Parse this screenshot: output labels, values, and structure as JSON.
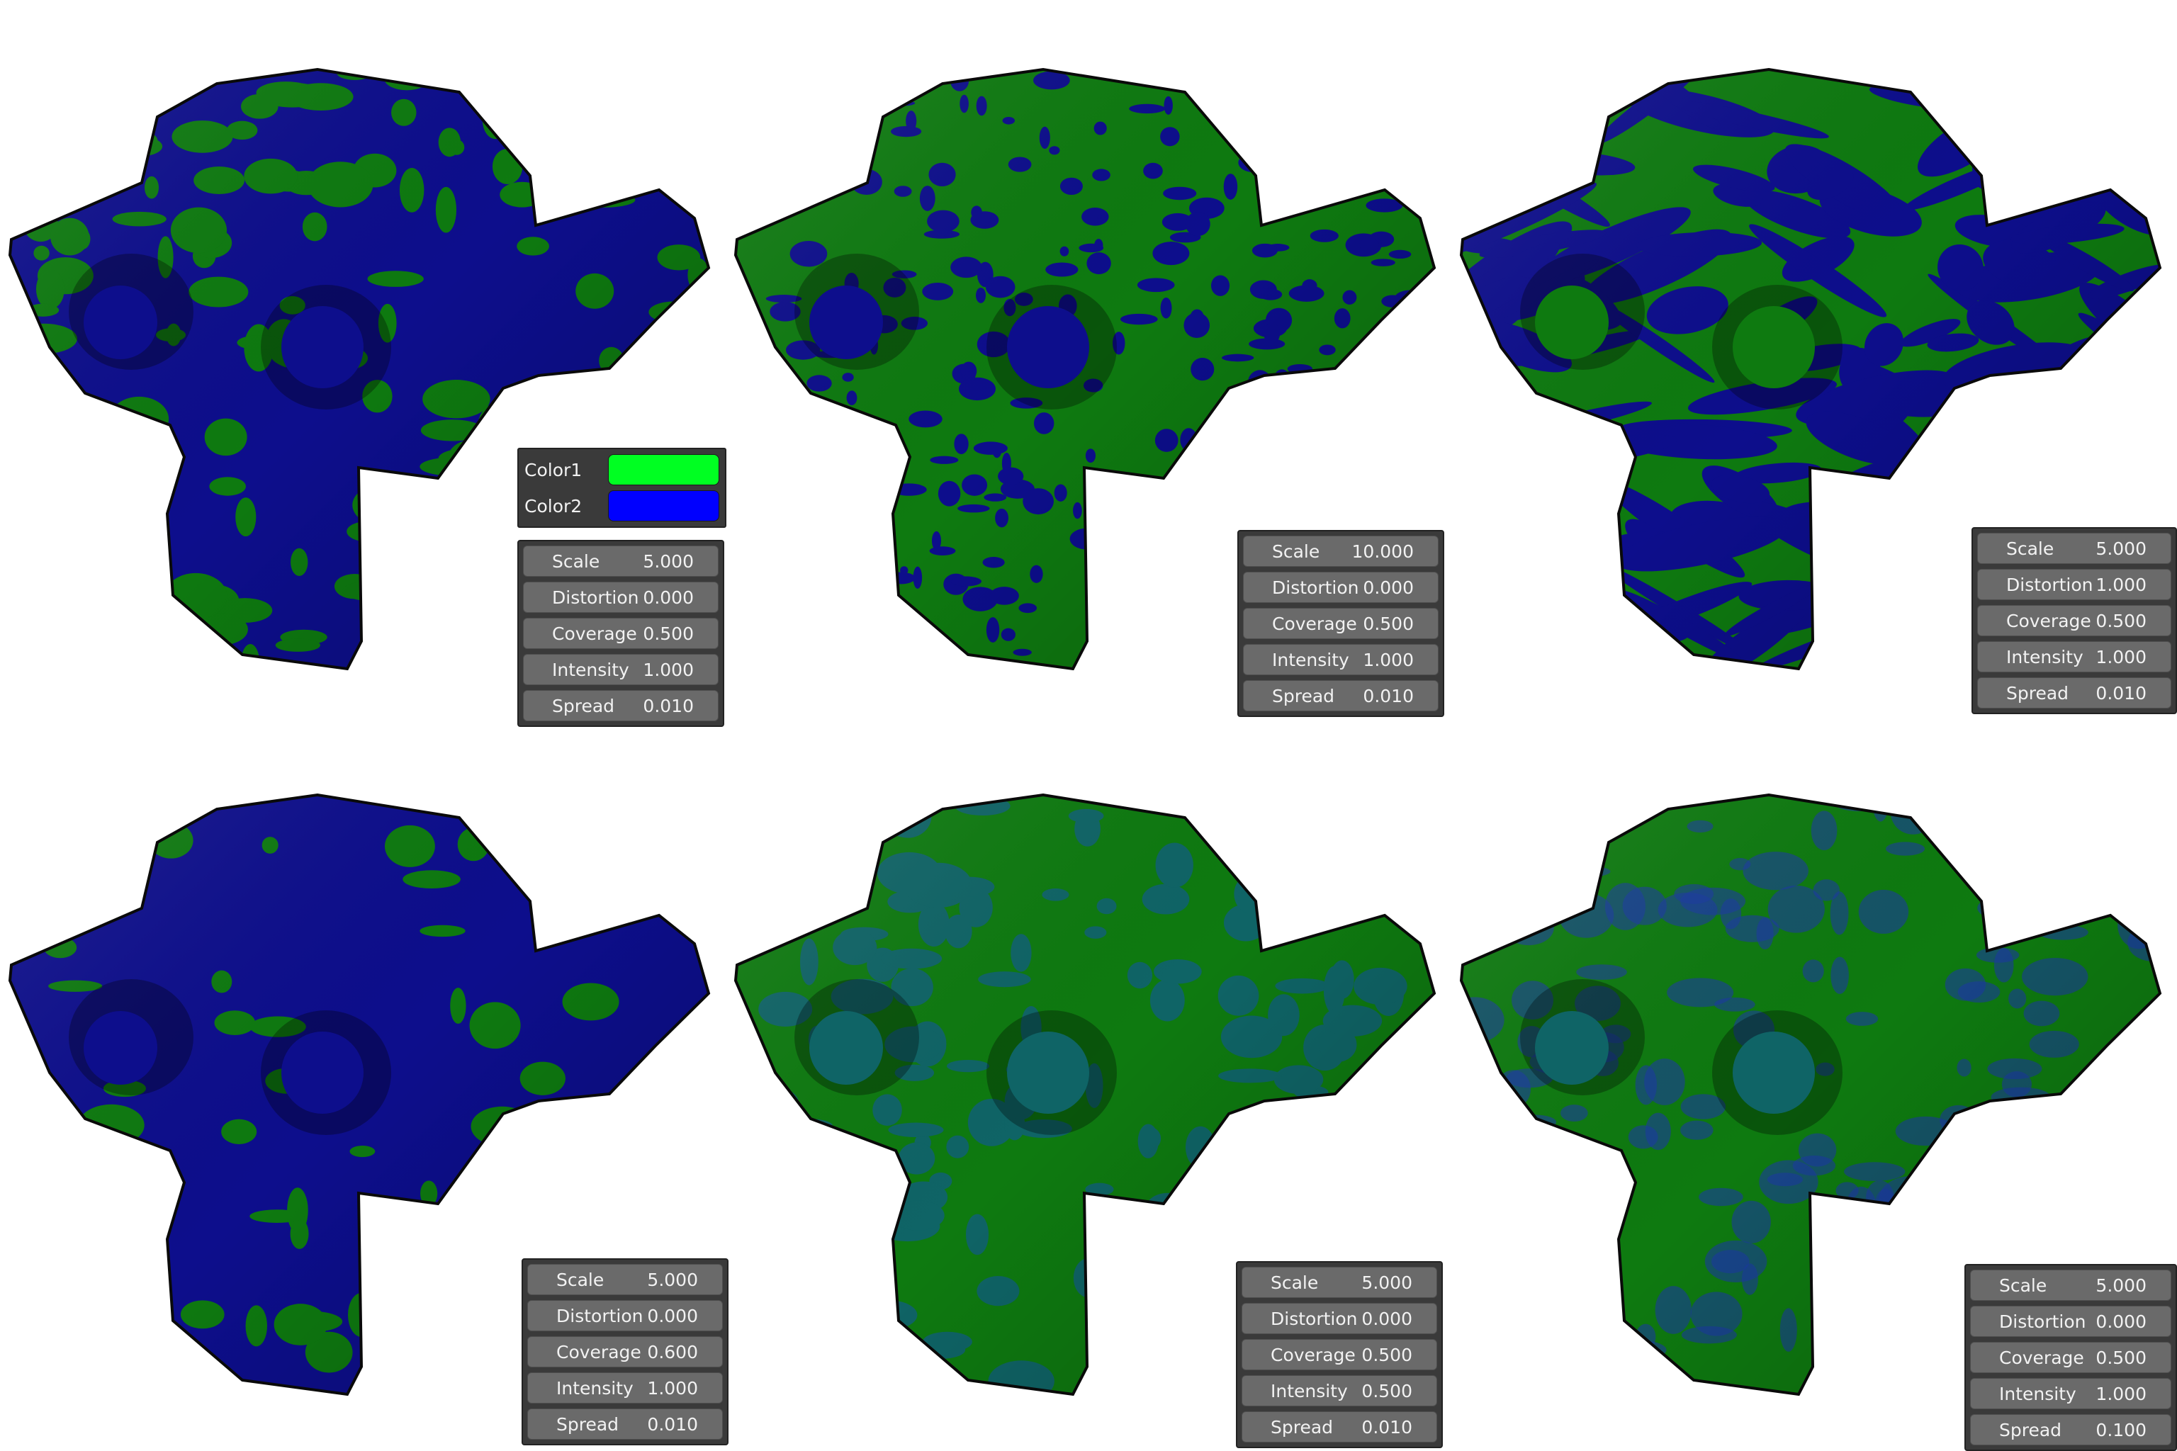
{
  "colors": {
    "color1_label": "Color1",
    "color2_label": "Color2",
    "color1_value": "#00ff22",
    "color2_value": "#0000ff"
  },
  "field_labels": {
    "scale": "Scale",
    "distortion": "Distortion",
    "coverage": "Coverage",
    "intensity": "Intensity",
    "spread": "Spread"
  },
  "variants": [
    {
      "scale": "5.000",
      "distortion": "0.000",
      "coverage": "0.500",
      "intensity": "1.000",
      "spread": "0.010"
    },
    {
      "scale": "10.000",
      "distortion": "0.000",
      "coverage": "0.500",
      "intensity": "1.000",
      "spread": "0.010"
    },
    {
      "scale": "5.000",
      "distortion": "1.000",
      "coverage": "0.500",
      "intensity": "1.000",
      "spread": "0.010"
    },
    {
      "scale": "5.000",
      "distortion": "0.000",
      "coverage": "0.600",
      "intensity": "1.000",
      "spread": "0.010"
    },
    {
      "scale": "5.000",
      "distortion": "0.000",
      "coverage": "0.500",
      "intensity": "0.500",
      "spread": "0.010"
    },
    {
      "scale": "5.000",
      "distortion": "0.000",
      "coverage": "0.500",
      "intensity": "1.000",
      "spread": "0.100"
    }
  ],
  "render_colors": {
    "green": "#0e7a10",
    "blue": "#0d0e8c",
    "teal": "#0f6466",
    "outline": "#0a0a0a"
  }
}
